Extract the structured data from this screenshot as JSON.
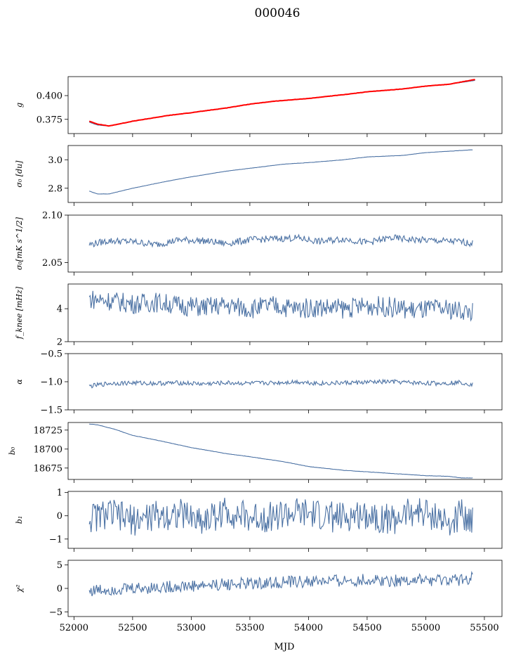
{
  "figure_title": "000046",
  "xlabel": "MJD",
  "x_ticks": [
    "52000",
    "52500",
    "53000",
    "53500",
    "54000",
    "54500",
    "55000",
    "55500"
  ],
  "colors": {
    "series": "#4c72a4",
    "fit": "#ff0000",
    "axes": "#000000"
  },
  "chart_data": [
    {
      "type": "line",
      "ylabel": "g",
      "xlim": [
        51950,
        55650
      ],
      "ylim": [
        0.36,
        0.42
      ],
      "yticks": [
        0.375,
        0.4
      ],
      "ytick_labels": [
        "0.375",
        "0.400"
      ],
      "series": [
        {
          "x": [
            52130,
            52200,
            52300,
            52500,
            52800,
            53000,
            53300,
            53500,
            53700,
            54000,
            54300,
            54500,
            54800,
            55000,
            55200,
            55420
          ],
          "y": [
            0.372,
            0.369,
            0.368,
            0.373,
            0.379,
            0.382,
            0.387,
            0.391,
            0.394,
            0.397,
            0.401,
            0.404,
            0.407,
            0.41,
            0.412,
            0.416
          ]
        },
        {
          "x": [
            52130,
            52200,
            52300,
            52500,
            52800,
            53000,
            53300,
            53500,
            53700,
            54000,
            54300,
            54500,
            54800,
            55000,
            55200,
            55420
          ],
          "y": [
            0.373,
            0.37,
            0.368,
            0.373,
            0.379,
            0.382,
            0.387,
            0.391,
            0.394,
            0.397,
            0.401,
            0.404,
            0.407,
            0.41,
            0.412,
            0.417
          ]
        }
      ]
    },
    {
      "type": "line",
      "ylabel": "σ₀ [du]",
      "xlim": [
        51950,
        55650
      ],
      "ylim": [
        2.7,
        3.1
      ],
      "yticks": [
        2.8,
        3.0
      ],
      "ytick_labels": [
        "2.8",
        "3.0"
      ],
      "series": [
        {
          "x": [
            52130,
            52200,
            52300,
            52500,
            52800,
            53000,
            53300,
            53500,
            53800,
            54000,
            54300,
            54500,
            54800,
            55000,
            55200,
            55400
          ],
          "y": [
            2.78,
            2.76,
            2.76,
            2.8,
            2.85,
            2.88,
            2.92,
            2.94,
            2.97,
            2.98,
            3.0,
            3.02,
            3.03,
            3.05,
            3.06,
            3.07
          ]
        }
      ]
    },
    {
      "type": "line",
      "ylabel": "σ₀[mK s^1/2]",
      "xlim": [
        51950,
        55650
      ],
      "ylim": [
        2.04,
        2.1
      ],
      "yticks": [
        2.05,
        2.1
      ],
      "ytick_labels": [
        "2.05",
        "2.10"
      ],
      "series": [
        {
          "x": [
            52130,
            52300,
            52500,
            52700,
            52900,
            53100,
            53300,
            53500,
            53700,
            53900,
            54100,
            54300,
            54500,
            54700,
            54900,
            55100,
            55300,
            55400
          ],
          "y": [
            2.069,
            2.073,
            2.072,
            2.069,
            2.074,
            2.073,
            2.07,
            2.074,
            2.075,
            2.076,
            2.072,
            2.075,
            2.071,
            2.076,
            2.074,
            2.073,
            2.072,
            2.07
          ]
        }
      ]
    },
    {
      "type": "line",
      "ylabel": "f_knee [mHz]",
      "xlim": [
        51950,
        55650
      ],
      "ylim": [
        2,
        5.5
      ],
      "yticks": [
        2,
        4
      ],
      "ytick_labels": [
        "2",
        "4"
      ],
      "series": [
        {
          "x": [
            52130,
            52300,
            52500,
            52700,
            52900,
            53100,
            53300,
            53500,
            53700,
            53900,
            54100,
            54300,
            54500,
            54700,
            54900,
            55100,
            55300,
            55400
          ],
          "y": [
            4.6,
            4.5,
            4.3,
            4.4,
            4.2,
            4.1,
            4.2,
            4.0,
            4.2,
            4.0,
            4.1,
            4.0,
            4.2,
            4.1,
            3.9,
            4.0,
            3.9,
            3.8
          ]
        }
      ]
    },
    {
      "type": "line",
      "ylabel": "α",
      "xlim": [
        51950,
        55650
      ],
      "ylim": [
        -1.5,
        -0.5
      ],
      "yticks": [
        -1.5,
        -1.0,
        -0.5
      ],
      "ytick_labels": [
        "−1.5",
        "−1.0",
        "−0.5"
      ],
      "series": [
        {
          "x": [
            52130,
            52300,
            52500,
            52700,
            52900,
            53100,
            53300,
            53500,
            53700,
            53900,
            54100,
            54300,
            54500,
            54700,
            54900,
            55100,
            55300,
            55400
          ],
          "y": [
            -1.08,
            -1.03,
            -1.02,
            -1.03,
            -1.02,
            -1.04,
            -1.02,
            -1.03,
            -1.02,
            -1.0,
            -1.03,
            -1.02,
            -1.01,
            -1.0,
            -1.02,
            -1.03,
            -1.01,
            -1.05
          ]
        }
      ]
    },
    {
      "type": "line",
      "ylabel": "b₀",
      "xlim": [
        51950,
        55650
      ],
      "ylim": [
        18660,
        18735
      ],
      "yticks": [
        18675,
        18700,
        18725
      ],
      "ytick_labels": [
        "18675",
        "18700",
        "18725"
      ],
      "series": [
        {
          "x": [
            52130,
            52200,
            52350,
            52500,
            52700,
            53000,
            53300,
            53500,
            53800,
            54000,
            54300,
            54500,
            54800,
            55000,
            55200,
            55300,
            55400
          ],
          "y": [
            18733,
            18732,
            18726,
            18718,
            18712,
            18702,
            18694,
            18690,
            18683,
            18677,
            18672,
            18670,
            18667,
            18665,
            18664,
            18662,
            18662
          ]
        }
      ]
    },
    {
      "type": "line",
      "ylabel": "b₁",
      "xlim": [
        51950,
        55650
      ],
      "ylim": [
        -1.4,
        1.05
      ],
      "yticks": [
        -1,
        0,
        1
      ],
      "ytick_labels": [
        "−1",
        "0",
        "1"
      ],
      "series": [
        {
          "x": [
            52130,
            52300,
            52500,
            52700,
            52900,
            53100,
            53300,
            53500,
            53700,
            53900,
            54100,
            54300,
            54500,
            54700,
            54900,
            55100,
            55200,
            55300,
            55400
          ],
          "y": [
            -0.1,
            0.1,
            -0.2,
            0.0,
            0.1,
            -0.2,
            0.2,
            -0.1,
            0.0,
            0.1,
            0.0,
            -0.1,
            0.1,
            -0.2,
            0.2,
            0.0,
            -0.5,
            0.1,
            -0.1
          ]
        }
      ]
    },
    {
      "type": "line",
      "ylabel": "χ²",
      "xlim": [
        51950,
        55650
      ],
      "ylim": [
        -6,
        6
      ],
      "yticks": [
        -5,
        0,
        5
      ],
      "ytick_labels": [
        "−5",
        "0",
        "5"
      ],
      "series": [
        {
          "x": [
            52130,
            52300,
            52500,
            52700,
            52900,
            53100,
            53300,
            53500,
            53700,
            53900,
            54100,
            54300,
            54500,
            54700,
            54900,
            55100,
            55300,
            55400
          ],
          "y": [
            -0.5,
            -0.2,
            0.0,
            0.2,
            0.4,
            0.6,
            0.9,
            1.0,
            1.2,
            1.4,
            1.5,
            1.6,
            1.8,
            1.7,
            1.8,
            1.6,
            1.9,
            2.2
          ]
        }
      ]
    }
  ]
}
